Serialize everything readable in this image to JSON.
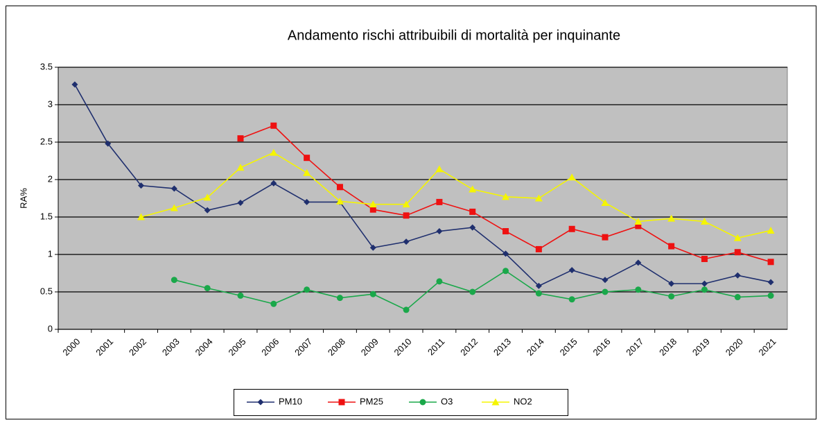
{
  "chart_data": {
    "type": "line",
    "title": "Andamento rischi attribuibili di mortalità per inquinante",
    "y_label": "RA%",
    "categories": [
      "2000",
      "2001",
      "2002",
      "2003",
      "2004",
      "2005",
      "2006",
      "2007",
      "2008",
      "2009",
      "2010",
      "2011",
      "2012",
      "2013",
      "2014",
      "2015",
      "2016",
      "2017",
      "2018",
      "2019",
      "2020",
      "2021"
    ],
    "series": [
      {
        "name": "PM10",
        "color": "#1f2f6e",
        "marker": "diamond",
        "values": [
          3.27,
          2.48,
          1.92,
          1.88,
          1.59,
          1.69,
          1.95,
          1.7,
          1.7,
          1.09,
          1.17,
          1.31,
          1.36,
          1.01,
          0.58,
          0.79,
          0.66,
          0.89,
          0.61,
          0.61,
          0.72,
          0.63
        ]
      },
      {
        "name": "PM25",
        "color": "#ee1111",
        "marker": "square",
        "values": [
          null,
          null,
          null,
          null,
          null,
          2.55,
          2.72,
          2.29,
          1.9,
          1.6,
          1.52,
          1.7,
          1.57,
          1.31,
          1.07,
          1.34,
          1.23,
          1.38,
          1.11,
          0.94,
          1.03,
          0.9
        ]
      },
      {
        "name": "O3",
        "color": "#1aa84a",
        "marker": "circle",
        "values": [
          null,
          null,
          null,
          0.66,
          0.55,
          0.45,
          0.34,
          0.53,
          0.42,
          0.47,
          0.26,
          0.64,
          0.5,
          0.78,
          0.48,
          0.4,
          0.5,
          0.53,
          0.44,
          0.53,
          0.43,
          0.45
        ]
      },
      {
        "name": "NO2",
        "color": "#f5f500",
        "marker": "triangle",
        "values": [
          null,
          null,
          1.5,
          1.62,
          1.76,
          2.16,
          2.36,
          2.09,
          1.71,
          1.67,
          1.67,
          2.14,
          1.87,
          1.77,
          1.75,
          2.03,
          1.69,
          1.44,
          1.48,
          1.44,
          1.22,
          1.32
        ]
      }
    ],
    "ylim": [
      0,
      3.5
    ],
    "yticks": [
      0,
      0.5,
      1,
      1.5,
      2,
      2.5,
      3,
      3.5
    ],
    "grid": true,
    "legend": "bottom"
  }
}
